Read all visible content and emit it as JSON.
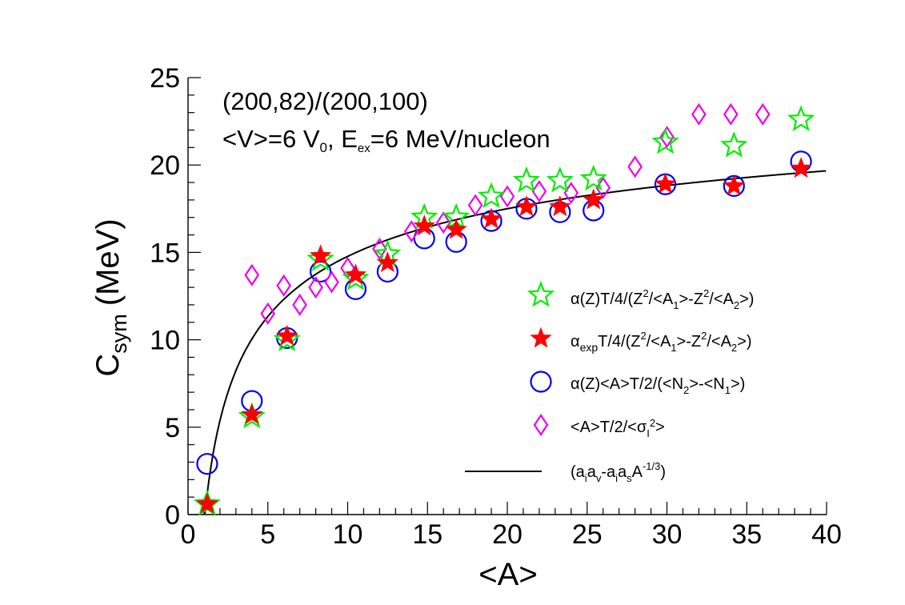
{
  "chart_data": {
    "type": "scatter",
    "xlabel": "<A>",
    "ylabel_main": "C",
    "ylabel_sub": "sym",
    "ylabel_units": "(MeV)",
    "xlim": [
      0,
      40
    ],
    "ylim": [
      0,
      25
    ],
    "x_ticks": [
      0,
      5,
      10,
      15,
      20,
      25,
      30,
      35,
      40
    ],
    "y_ticks": [
      0,
      5,
      10,
      15,
      20,
      25
    ],
    "x_tick_labels": [
      "0",
      "5",
      "10",
      "15",
      "20",
      "25",
      "30",
      "35",
      "40"
    ],
    "y_tick_labels": [
      "0",
      "5",
      "10",
      "15",
      "20",
      "25"
    ],
    "annotation_line1": "(200,82)/(200,100)",
    "annotation_line2_a": "<V>=6 V",
    "annotation_line2_b": "0",
    "annotation_line2_c": ", E",
    "annotation_line2_d": "ex",
    "annotation_line2_e": "=6 MeV/nucleon",
    "series": [
      {
        "name": "alphaZ_T4",
        "legend": "α(Z)T/4/(Z²/<A₁>-Z²/<A₂>)",
        "marker": "open-star",
        "color": "#00ee00",
        "x": [
          1.2,
          4.0,
          6.2,
          8.3,
          10.5,
          12.5,
          14.8,
          16.8,
          19.0,
          21.2,
          23.3,
          25.4,
          29.9,
          34.2,
          38.4
        ],
        "y": [
          0.6,
          5.6,
          10.0,
          14.6,
          13.5,
          14.9,
          17.0,
          17.0,
          18.2,
          19.1,
          19.1,
          19.2,
          21.3,
          21.1,
          22.6
        ]
      },
      {
        "name": "alphaExp_T4",
        "legend": "α_exp T/4/(Z²/<A₁>-Z²/<A₂>)",
        "marker": "filled-star",
        "color": "#ff0000",
        "x": [
          1.2,
          4.0,
          6.2,
          8.3,
          10.5,
          12.5,
          14.8,
          16.8,
          19.0,
          21.2,
          23.3,
          25.4,
          29.9,
          34.2,
          38.4
        ],
        "y": [
          0.6,
          5.7,
          10.2,
          14.8,
          13.7,
          14.4,
          16.5,
          16.3,
          16.9,
          17.6,
          17.6,
          18.0,
          18.9,
          18.8,
          19.8
        ]
      },
      {
        "name": "alphaZ_A_T2",
        "legend": "α(Z)<A>T/2/(<N₂>-<N₁>)",
        "marker": "open-circle",
        "color": "#0000ee",
        "x": [
          1.2,
          4.0,
          6.2,
          8.3,
          10.5,
          12.5,
          14.8,
          16.8,
          19.0,
          21.2,
          23.3,
          25.4,
          29.9,
          34.2,
          38.4
        ],
        "y": [
          2.9,
          6.5,
          10.1,
          13.9,
          12.9,
          13.9,
          15.8,
          15.6,
          16.8,
          17.5,
          17.3,
          17.4,
          18.9,
          18.8,
          20.2
        ]
      },
      {
        "name": "A_T2_sigma",
        "legend": "<A>T/2/<σ_I²>",
        "marker": "open-diamond",
        "color": "#ee00ee",
        "x": [
          4.0,
          5.0,
          6.0,
          7.0,
          8.0,
          9.0,
          10.0,
          12.0,
          14.0,
          16.0,
          18.0,
          20.0,
          22.0,
          24.0,
          26.0,
          28.0,
          30.0,
          32.0,
          34.0,
          36.0
        ],
        "y": [
          13.7,
          11.5,
          13.1,
          12.0,
          13.0,
          13.3,
          14.1,
          15.2,
          16.2,
          16.7,
          17.7,
          18.2,
          18.5,
          18.4,
          18.7,
          19.9,
          21.6,
          22.9,
          22.9,
          22.9
        ]
      }
    ],
    "curve": {
      "name": "fit",
      "legend": "(a_i a_v - a_i a_s A^(-1/3))",
      "color": "#000000",
      "formula_coeffs": {
        "a": 28.0,
        "b": 28.5
      }
    }
  },
  "legend": {
    "entry1": {
      "t1": "α(Z)T/4/(Z",
      "t2": "2",
      "t3": "/<A",
      "t4": "1",
      "t5": ">-Z",
      "t6": "2",
      "t7": "/<A",
      "t8": "2",
      "t9": ">)"
    },
    "entry2": {
      "t1": "α",
      "t2": "exp",
      "t3": "T/4/(Z",
      "t4": "2",
      "t5": "/<A",
      "t6": "1",
      "t7": ">-Z",
      "t8": "2",
      "t9": "/<A",
      "t10": "2",
      "t11": ">)"
    },
    "entry3": {
      "t1": "α(Z)<A>T/2/(<N",
      "t2": "2",
      "t3": ">-<N",
      "t4": "1",
      "t5": ">)"
    },
    "entry4": {
      "t1": "<A>T/2/<σ",
      "t2": "I",
      "t3": "2",
      "t4": ">"
    },
    "entry5": {
      "t1": "(a",
      "t2": "i",
      "t3": "a",
      "t4": "v",
      "t5": "-a",
      "t6": "i",
      "t7": "a",
      "t8": "s",
      "t9": "A",
      "t10": "-1/3",
      "t11": ")"
    }
  }
}
